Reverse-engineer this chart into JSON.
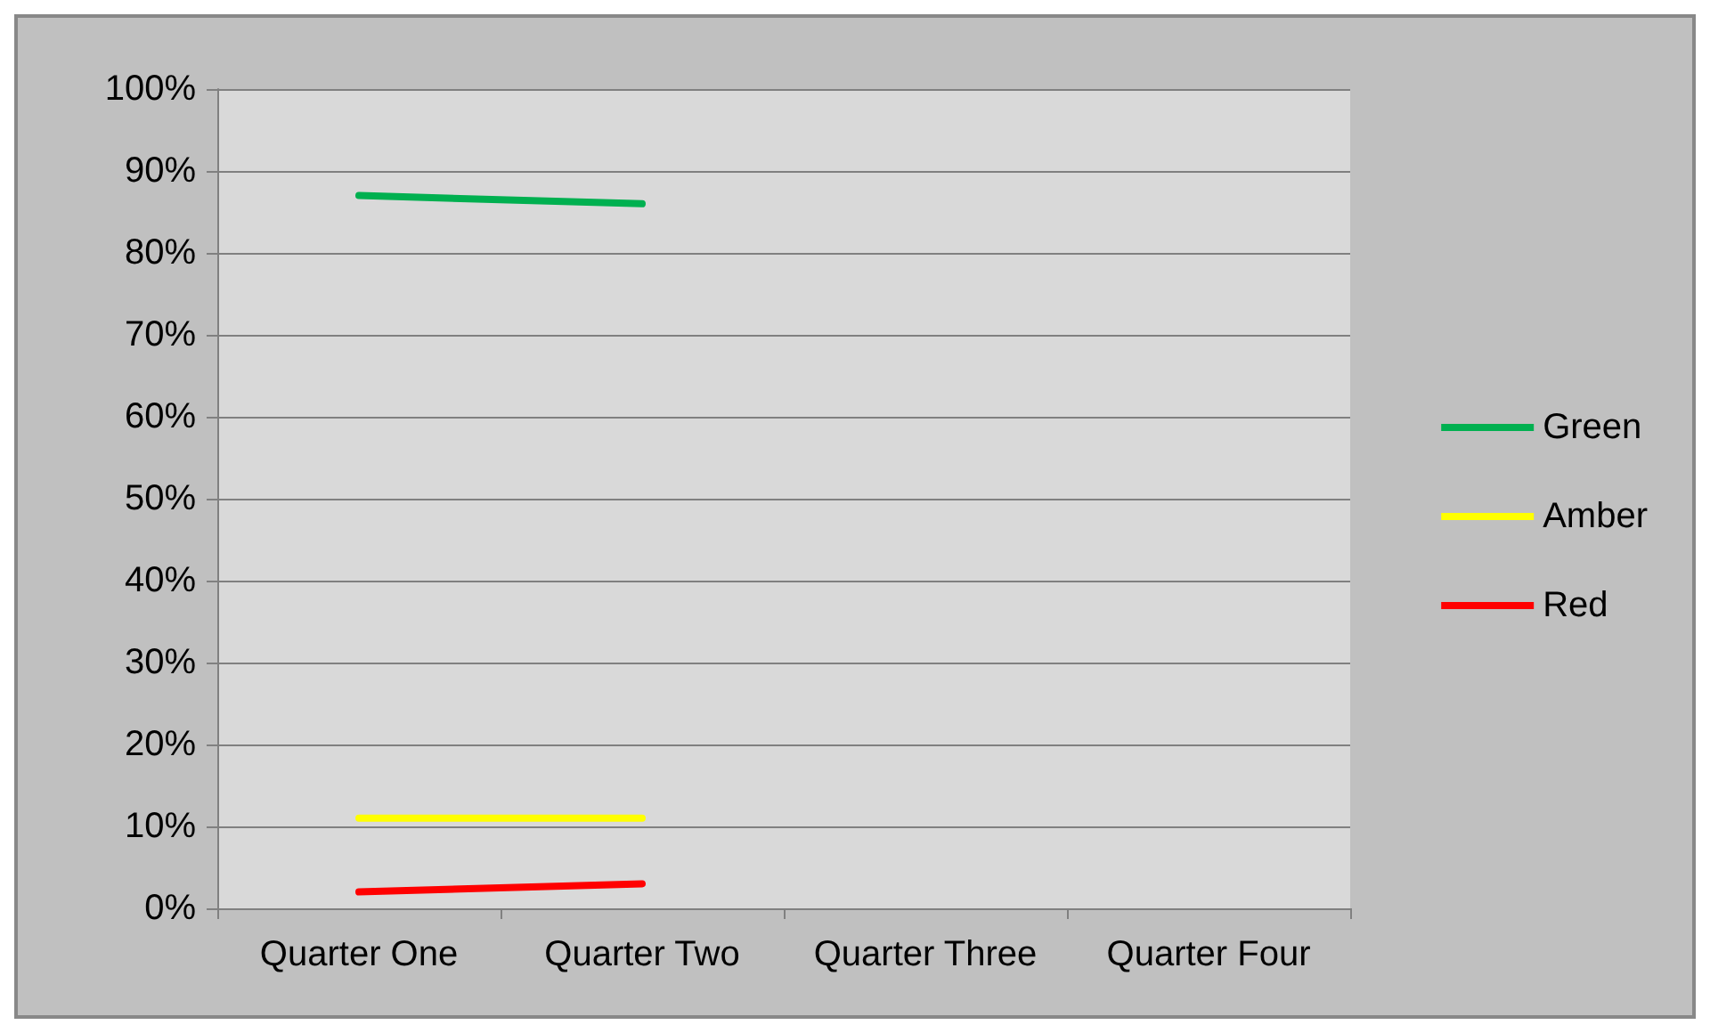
{
  "chart_data": {
    "type": "line",
    "categories": [
      "Quarter One",
      "Quarter Two",
      "Quarter Three",
      "Quarter Four"
    ],
    "series": [
      {
        "name": "Green",
        "color": "#00b050",
        "values": [
          87,
          86,
          null,
          null
        ]
      },
      {
        "name": "Amber",
        "color": "#ffff00",
        "values": [
          11,
          11,
          null,
          null
        ]
      },
      {
        "name": "Red",
        "color": "#ff0000",
        "values": [
          2,
          3,
          null,
          null
        ]
      }
    ],
    "ylim": [
      0,
      100
    ],
    "yticks": [
      {
        "value": 0,
        "label": "0%"
      },
      {
        "value": 10,
        "label": "10%"
      },
      {
        "value": 20,
        "label": "20%"
      },
      {
        "value": 30,
        "label": "30%"
      },
      {
        "value": 40,
        "label": "40%"
      },
      {
        "value": 50,
        "label": "50%"
      },
      {
        "value": 60,
        "label": "60%"
      },
      {
        "value": 70,
        "label": "70%"
      },
      {
        "value": 80,
        "label": "80%"
      },
      {
        "value": 90,
        "label": "90%"
      },
      {
        "value": 100,
        "label": "100%"
      }
    ],
    "grid": "y",
    "legend": "right",
    "marker": "none",
    "line_style": "solid"
  }
}
